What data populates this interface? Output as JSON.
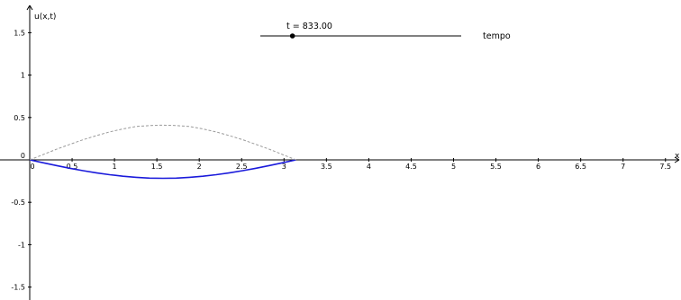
{
  "chart_data": {
    "type": "line",
    "title": "",
    "xlabel": "x",
    "ylabel": "u(x,t)",
    "xlim": [
      -0.1,
      7.75
    ],
    "ylim": [
      -1.75,
      1.75
    ],
    "x_ticks": [
      0,
      0.5,
      1,
      1.5,
      2,
      2.5,
      3,
      3.5,
      4,
      4.5,
      5,
      5.5,
      6,
      6.5,
      7,
      7.5
    ],
    "x_tick_labels": [
      "0",
      "0.5",
      "1",
      "1.5",
      "2",
      "2.5",
      "3",
      "3.5",
      "4",
      "4.5",
      "5",
      "5.5",
      "6",
      "6.5",
      "7",
      "7.5"
    ],
    "y_ticks": [
      1.5,
      1,
      0.5,
      0,
      -0.5,
      -1,
      -1.5
    ],
    "y_tick_labels": [
      "1.5",
      "1",
      "0.5",
      "0",
      "-0.5",
      "-1",
      "-1.5"
    ],
    "grid": false,
    "series": [
      {
        "style": "solid",
        "color": "#1a1adb",
        "x": [
          0,
          0.1571,
          0.3142,
          0.4712,
          0.6283,
          0.7854,
          0.9425,
          1.0996,
          1.2566,
          1.4137,
          1.5708,
          1.7279,
          1.885,
          2.042,
          2.1991,
          2.3562,
          2.5133,
          2.6704,
          2.8274,
          2.9845,
          3.1416
        ],
        "y": [
          0,
          -0.034,
          -0.067,
          -0.098,
          -0.127,
          -0.153,
          -0.175,
          -0.193,
          -0.206,
          -0.215,
          -0.217,
          -0.215,
          -0.206,
          -0.193,
          -0.175,
          -0.153,
          -0.127,
          -0.098,
          -0.067,
          -0.034,
          0
        ]
      },
      {
        "style": "dashed",
        "color": "#9a9a9a",
        "x": [
          0,
          0.1571,
          0.3142,
          0.4712,
          0.6283,
          0.7854,
          0.9425,
          1.0996,
          1.2566,
          1.4137,
          1.5708,
          1.7279,
          1.885,
          2.042,
          2.1991,
          2.3562,
          2.5133,
          2.6704,
          2.8274,
          2.9845,
          3.1416
        ],
        "y": [
          0,
          0.063,
          0.125,
          0.182,
          0.237,
          0.286,
          0.329,
          0.365,
          0.394,
          0.405,
          0.41,
          0.405,
          0.394,
          0.365,
          0.329,
          0.286,
          0.237,
          0.182,
          0.125,
          0.063,
          0
        ]
      }
    ],
    "slider": {
      "label": "t = 833.00",
      "caption": "tempo",
      "value": 833.0,
      "fraction": 0.16
    }
  }
}
